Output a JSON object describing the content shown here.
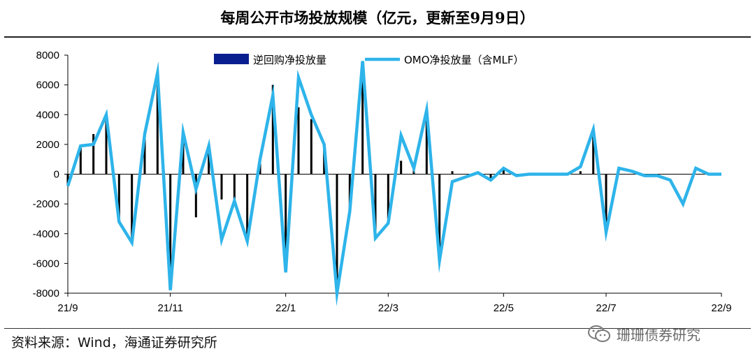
{
  "title": "每周公开市场投放规模（亿元，更新至9月9日）",
  "source": "资料来源：Wind，海通证券研究所",
  "watermark": "珊珊债券研究",
  "colors": {
    "bar": "#000000",
    "line": "#2eb4ea",
    "axis": "#000000",
    "legend_bar": "#0a1f8f"
  },
  "chart_data": {
    "type": "bar+line",
    "ylim": [
      -8000,
      8000
    ],
    "yticks": [
      8000,
      6000,
      4000,
      2000,
      0,
      -2000,
      -4000,
      -6000,
      -8000
    ],
    "xtick_labels": [
      "21/9",
      "21/11",
      "22/1",
      "22/3",
      "22/5",
      "22/7",
      "22/9"
    ],
    "legend_position": "top",
    "series": [
      {
        "name": "逆回购净投放量",
        "kind": "bar",
        "values": [
          -700,
          1900,
          2700,
          3700,
          -3200,
          -4500,
          2700,
          6300,
          -7300,
          2600,
          -2900,
          1500,
          -1700,
          -2000,
          -4200,
          700,
          6000,
          -6200,
          4500,
          3700,
          2000,
          -7800,
          -2500,
          7500,
          -4200,
          -3000,
          900,
          600,
          3600,
          -5600,
          200,
          0,
          0,
          -400,
          300,
          0,
          0,
          0,
          0,
          0,
          200,
          2900,
          -3600,
          0,
          0,
          0,
          0,
          0,
          0,
          0,
          0,
          0
        ],
        "x": [
          "21/9",
          "",
          "",
          "",
          "",
          "",
          "",
          "",
          "21/11",
          "",
          "",
          "",
          "",
          "",
          "",
          "",
          "",
          "22/1",
          "",
          "",
          "",
          "",
          "",
          "",
          "",
          "22/3",
          "",
          "",
          "",
          "",
          "",
          "",
          "",
          "",
          "22/5",
          "",
          "",
          "",
          "",
          "",
          "",
          "",
          "22/7",
          "",
          "",
          "",
          "",
          "",
          "",
          "",
          "",
          "22/9"
        ]
      },
      {
        "name": "OMO净投放量（含MLF）",
        "kind": "line",
        "values": [
          -800,
          1900,
          2000,
          4000,
          -3200,
          -4600,
          2700,
          6800,
          -7800,
          2800,
          -1000,
          1900,
          -4400,
          -1800,
          -4500,
          1000,
          5300,
          -6600,
          6500,
          4000,
          2000,
          -8000,
          -2500,
          7600,
          -4300,
          -3300,
          2600,
          400,
          4300,
          -5800,
          -500,
          -200,
          100,
          -400,
          400,
          -100,
          0,
          0,
          0,
          0,
          500,
          3000,
          -3900,
          400,
          200,
          -100,
          -100,
          -400,
          -2000,
          400,
          0,
          0
        ]
      }
    ]
  }
}
